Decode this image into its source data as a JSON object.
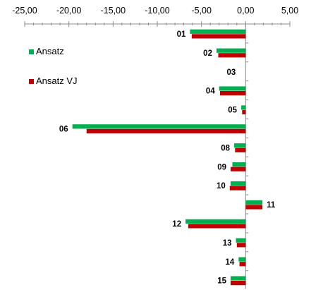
{
  "chart_data": {
    "type": "bar",
    "orientation": "horizontal",
    "title": "",
    "xlabel": "",
    "ylabel": "",
    "xlim": [
      -25,
      5
    ],
    "x_ticks": [
      -25,
      -20,
      -15,
      -10,
      -5,
      0,
      5
    ],
    "x_tick_labels": [
      "-25,00",
      "-20,00",
      "-15,00",
      "-10,00",
      "-5,00",
      "0,00",
      "5,00"
    ],
    "axis_position": "top",
    "grid": false,
    "legend_position": "left",
    "categories": [
      "01",
      "02",
      "03",
      "04",
      "05",
      "06",
      "08",
      "09",
      "10",
      "11",
      "12",
      "13",
      "14",
      "15"
    ],
    "series": [
      {
        "name": "Ansatz",
        "color": "#00B050",
        "values": [
          -6.3,
          -3.3,
          0,
          -3.0,
          -0.5,
          -19.6,
          -1.3,
          -1.5,
          -1.7,
          1.9,
          -6.8,
          -1.1,
          -0.8,
          -1.7
        ]
      },
      {
        "name": "Ansatz VJ",
        "color": "#C00000",
        "values": [
          -6.1,
          -3.1,
          0,
          -2.9,
          -0.4,
          -18.0,
          -1.2,
          -1.7,
          -1.8,
          1.9,
          -6.5,
          -1.0,
          -0.7,
          -1.7
        ]
      }
    ]
  }
}
